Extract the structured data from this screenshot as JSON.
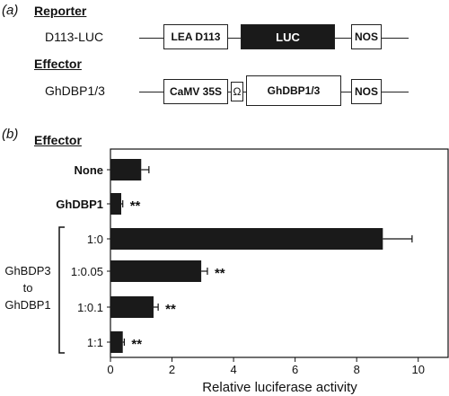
{
  "panel_a": {
    "label": "(a)",
    "reporter": {
      "heading": "Reporter",
      "name": "D113-LUC",
      "promoter": "LEA D113",
      "gene": "LUC",
      "terminator": "NOS"
    },
    "effector": {
      "heading": "Effector",
      "name": "GhDBP1/3",
      "promoter": "CaMV 35S",
      "enhancer": "Ω",
      "gene": "GhDBP1/3",
      "terminator": "NOS"
    }
  },
  "panel_b": {
    "label": "(b)",
    "heading": "Effector",
    "group_label": [
      "GhBDP3",
      "to",
      "GhDBP1"
    ]
  },
  "chart_data": {
    "type": "bar",
    "orientation": "horizontal",
    "categories": [
      "None",
      "GhDBP1",
      "1:0",
      "1:0.05",
      "1:0.1",
      "1:1"
    ],
    "values": [
      1.0,
      0.35,
      8.85,
      2.95,
      1.4,
      0.4
    ],
    "errors": [
      0.25,
      0.05,
      0.95,
      0.2,
      0.15,
      0.05
    ],
    "significance": [
      "",
      "**",
      "",
      "**",
      "**",
      "**"
    ],
    "xlabel": "Relative luciferase activity",
    "xlim": [
      0,
      11
    ],
    "xticks": [
      0,
      2,
      4,
      6,
      8,
      10
    ],
    "bar_color": "#1a1a1a",
    "grid": false
  }
}
